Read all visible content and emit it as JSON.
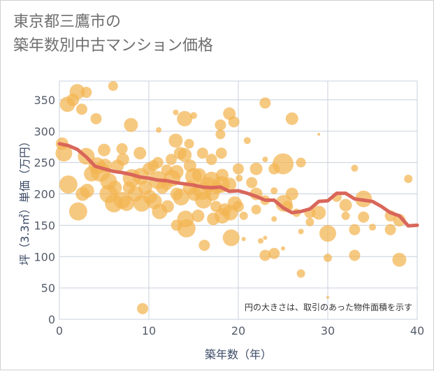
{
  "title": {
    "line1": "東京都三鷹市の",
    "line2": "築年数別中古マンション価格"
  },
  "chart_data": {
    "type": "scatter",
    "xlabel": "築年数（年）",
    "ylabel": "坪（3.3㎡）単価（万円）",
    "xlim": [
      0,
      40
    ],
    "ylim": [
      0,
      380
    ],
    "xticks": [
      0,
      10,
      20,
      30,
      40
    ],
    "yticks": [
      0,
      50,
      100,
      150,
      200,
      250,
      300,
      350
    ],
    "grid": true,
    "annotation": "円の大きさは、取引のあった物件面積を示す",
    "colors": {
      "bubble": "#f2b450",
      "trend": "#d9665a",
      "grid": "#c8d1dc"
    },
    "scatter": [
      {
        "x": 0.3,
        "y": 280,
        "s": 9
      },
      {
        "x": 0.5,
        "y": 265,
        "s": 12
      },
      {
        "x": 0.9,
        "y": 343,
        "s": 11
      },
      {
        "x": 1.0,
        "y": 215,
        "s": 13
      },
      {
        "x": 1.5,
        "y": 350,
        "s": 9
      },
      {
        "x": 2.0,
        "y": 363,
        "s": 11
      },
      {
        "x": 2.5,
        "y": 335,
        "s": 8
      },
      {
        "x": 3.0,
        "y": 362,
        "s": 8
      },
      {
        "x": 2.1,
        "y": 172,
        "s": 13
      },
      {
        "x": 2.6,
        "y": 200,
        "s": 10
      },
      {
        "x": 3.0,
        "y": 260,
        "s": 12
      },
      {
        "x": 3.1,
        "y": 205,
        "s": 10
      },
      {
        "x": 3.6,
        "y": 232,
        "s": 11
      },
      {
        "x": 4.1,
        "y": 320,
        "s": 8
      },
      {
        "x": 4.2,
        "y": 245,
        "s": 12
      },
      {
        "x": 4.6,
        "y": 235,
        "s": 14
      },
      {
        "x": 5.0,
        "y": 270,
        "s": 9
      },
      {
        "x": 5.1,
        "y": 245,
        "s": 10
      },
      {
        "x": 5.5,
        "y": 220,
        "s": 12
      },
      {
        "x": 5.5,
        "y": 200,
        "s": 13
      },
      {
        "x": 6.0,
        "y": 372,
        "s": 7
      },
      {
        "x": 6.1,
        "y": 185,
        "s": 13
      },
      {
        "x": 6.2,
        "y": 210,
        "s": 10
      },
      {
        "x": 6.5,
        "y": 245,
        "s": 9
      },
      {
        "x": 7.0,
        "y": 272,
        "s": 8
      },
      {
        "x": 7.1,
        "y": 255,
        "s": 9
      },
      {
        "x": 7.0,
        "y": 190,
        "s": 12
      },
      {
        "x": 7.5,
        "y": 185,
        "s": 11
      },
      {
        "x": 7.8,
        "y": 210,
        "s": 9
      },
      {
        "x": 8.0,
        "y": 310,
        "s": 10
      },
      {
        "x": 8.1,
        "y": 225,
        "s": 13
      },
      {
        "x": 8.5,
        "y": 200,
        "s": 11
      },
      {
        "x": 9.0,
        "y": 265,
        "s": 9
      },
      {
        "x": 9.1,
        "y": 228,
        "s": 12
      },
      {
        "x": 9.2,
        "y": 185,
        "s": 12
      },
      {
        "x": 9.3,
        "y": 17,
        "s": 8
      },
      {
        "x": 9.6,
        "y": 210,
        "s": 10
      },
      {
        "x": 10.0,
        "y": 240,
        "s": 9
      },
      {
        "x": 10.1,
        "y": 195,
        "s": 10
      },
      {
        "x": 10.5,
        "y": 245,
        "s": 8
      },
      {
        "x": 10.6,
        "y": 188,
        "s": 11
      },
      {
        "x": 11.0,
        "y": 222,
        "s": 13
      },
      {
        "x": 11.0,
        "y": 250,
        "s": 8
      },
      {
        "x": 11.1,
        "y": 302,
        "s": 4
      },
      {
        "x": 11.2,
        "y": 172,
        "s": 11
      },
      {
        "x": 11.5,
        "y": 210,
        "s": 9
      },
      {
        "x": 12.0,
        "y": 215,
        "s": 8
      },
      {
        "x": 12.0,
        "y": 238,
        "s": 8
      },
      {
        "x": 12.1,
        "y": 180,
        "s": 9
      },
      {
        "x": 12.5,
        "y": 255,
        "s": 8
      },
      {
        "x": 12.6,
        "y": 225,
        "s": 12
      },
      {
        "x": 13.0,
        "y": 285,
        "s": 10
      },
      {
        "x": 13.0,
        "y": 330,
        "s": 4
      },
      {
        "x": 13.1,
        "y": 235,
        "s": 10
      },
      {
        "x": 13.1,
        "y": 200,
        "s": 9
      },
      {
        "x": 13.1,
        "y": 150,
        "s": 8
      },
      {
        "x": 13.5,
        "y": 265,
        "s": 9
      },
      {
        "x": 13.6,
        "y": 195,
        "s": 12
      },
      {
        "x": 14.0,
        "y": 320,
        "s": 11
      },
      {
        "x": 14.0,
        "y": 262,
        "s": 10
      },
      {
        "x": 14.1,
        "y": 160,
        "s": 12
      },
      {
        "x": 14.2,
        "y": 145,
        "s": 13
      },
      {
        "x": 14.5,
        "y": 280,
        "s": 7
      },
      {
        "x": 14.6,
        "y": 245,
        "s": 9
      },
      {
        "x": 14.6,
        "y": 210,
        "s": 10
      },
      {
        "x": 15.0,
        "y": 325,
        "s": 5
      },
      {
        "x": 15.0,
        "y": 228,
        "s": 12
      },
      {
        "x": 15.1,
        "y": 200,
        "s": 10
      },
      {
        "x": 15.5,
        "y": 165,
        "s": 9
      },
      {
        "x": 15.6,
        "y": 230,
        "s": 10
      },
      {
        "x": 16.0,
        "y": 265,
        "s": 8
      },
      {
        "x": 16.0,
        "y": 205,
        "s": 13
      },
      {
        "x": 16.1,
        "y": 190,
        "s": 12
      },
      {
        "x": 16.2,
        "y": 118,
        "s": 8
      },
      {
        "x": 16.6,
        "y": 215,
        "s": 11
      },
      {
        "x": 17.0,
        "y": 255,
        "s": 8
      },
      {
        "x": 17.0,
        "y": 222,
        "s": 12
      },
      {
        "x": 17.1,
        "y": 200,
        "s": 10
      },
      {
        "x": 17.2,
        "y": 160,
        "s": 9
      },
      {
        "x": 17.5,
        "y": 180,
        "s": 8
      },
      {
        "x": 17.6,
        "y": 210,
        "s": 9
      },
      {
        "x": 18.0,
        "y": 310,
        "s": 8
      },
      {
        "x": 18.0,
        "y": 295,
        "s": 7
      },
      {
        "x": 18.1,
        "y": 265,
        "s": 8
      },
      {
        "x": 18.2,
        "y": 230,
        "s": 9
      },
      {
        "x": 18.1,
        "y": 215,
        "s": 12
      },
      {
        "x": 18.2,
        "y": 165,
        "s": 11
      },
      {
        "x": 18.5,
        "y": 175,
        "s": 9
      },
      {
        "x": 19.0,
        "y": 328,
        "s": 9
      },
      {
        "x": 19.0,
        "y": 215,
        "s": 10
      },
      {
        "x": 19.1,
        "y": 170,
        "s": 11
      },
      {
        "x": 19.2,
        "y": 130,
        "s": 12
      },
      {
        "x": 19.5,
        "y": 315,
        "s": 8
      },
      {
        "x": 19.6,
        "y": 185,
        "s": 10
      },
      {
        "x": 20.0,
        "y": 240,
        "s": 8
      },
      {
        "x": 20.0,
        "y": 180,
        "s": 8
      },
      {
        "x": 20.1,
        "y": 225,
        "s": 5
      },
      {
        "x": 20.6,
        "y": 165,
        "s": 6
      },
      {
        "x": 20.6,
        "y": 128,
        "s": 3
      },
      {
        "x": 21.0,
        "y": 285,
        "s": 5
      },
      {
        "x": 21.5,
        "y": 218,
        "s": 8
      },
      {
        "x": 22.0,
        "y": 240,
        "s": 9
      },
      {
        "x": 22.0,
        "y": 200,
        "s": 9
      },
      {
        "x": 22.0,
        "y": 175,
        "s": 7
      },
      {
        "x": 22.5,
        "y": 125,
        "s": 4
      },
      {
        "x": 23.0,
        "y": 345,
        "s": 8
      },
      {
        "x": 23.0,
        "y": 255,
        "s": 4
      },
      {
        "x": 23.0,
        "y": 190,
        "s": 7
      },
      {
        "x": 23.0,
        "y": 130,
        "s": 3
      },
      {
        "x": 23.0,
        "y": 102,
        "s": 8
      },
      {
        "x": 24.0,
        "y": 240,
        "s": 8
      },
      {
        "x": 24.0,
        "y": 205,
        "s": 5
      },
      {
        "x": 24.0,
        "y": 160,
        "s": 4
      },
      {
        "x": 24.0,
        "y": 105,
        "s": 8
      },
      {
        "x": 25.0,
        "y": 248,
        "s": 15
      },
      {
        "x": 25.1,
        "y": 185,
        "s": 12
      },
      {
        "x": 25.0,
        "y": 113,
        "s": 3
      },
      {
        "x": 25.5,
        "y": 180,
        "s": 8
      },
      {
        "x": 26.0,
        "y": 320,
        "s": 9
      },
      {
        "x": 26.0,
        "y": 200,
        "s": 9
      },
      {
        "x": 26.5,
        "y": 170,
        "s": 6
      },
      {
        "x": 27.0,
        "y": 250,
        "s": 7
      },
      {
        "x": 27.0,
        "y": 140,
        "s": 4
      },
      {
        "x": 27.0,
        "y": 73,
        "s": 6
      },
      {
        "x": 28.0,
        "y": 170,
        "s": 8
      },
      {
        "x": 28.0,
        "y": 155,
        "s": 6
      },
      {
        "x": 29.0,
        "y": 295,
        "s": 2
      },
      {
        "x": 29.0,
        "y": 170,
        "s": 10
      },
      {
        "x": 30.0,
        "y": 137,
        "s": 12
      },
      {
        "x": 30.0,
        "y": 98,
        "s": 6
      },
      {
        "x": 30.0,
        "y": 35,
        "s": 2
      },
      {
        "x": 31.0,
        "y": 195,
        "s": 7
      },
      {
        "x": 32.0,
        "y": 165,
        "s": 6
      },
      {
        "x": 32.0,
        "y": 182,
        "s": 9
      },
      {
        "x": 33.0,
        "y": 241,
        "s": 5
      },
      {
        "x": 33.0,
        "y": 143,
        "s": 8
      },
      {
        "x": 33.0,
        "y": 102,
        "s": 8
      },
      {
        "x": 34.0,
        "y": 192,
        "s": 12
      },
      {
        "x": 34.0,
        "y": 163,
        "s": 8
      },
      {
        "x": 35.0,
        "y": 147,
        "s": 5
      },
      {
        "x": 37.0,
        "y": 165,
        "s": 8
      },
      {
        "x": 37.0,
        "y": 143,
        "s": 8
      },
      {
        "x": 38.0,
        "y": 158,
        "s": 9
      },
      {
        "x": 38.0,
        "y": 95,
        "s": 10
      },
      {
        "x": 39.0,
        "y": 224,
        "s": 6
      }
    ],
    "trend": {
      "x": [
        0,
        1,
        2,
        3,
        4,
        5,
        6,
        7,
        8,
        9,
        10,
        11,
        12,
        13,
        14,
        15,
        16,
        17,
        18,
        19,
        20,
        21,
        22,
        23,
        24,
        25,
        26,
        27,
        28,
        29,
        30,
        31,
        32,
        33,
        34,
        35,
        36,
        37,
        38,
        39,
        40
      ],
      "y": [
        280,
        277,
        271,
        259,
        244,
        240,
        236,
        234,
        231,
        227,
        225,
        222,
        221,
        218,
        216,
        214,
        211,
        210,
        211,
        204,
        205,
        201,
        196,
        190,
        190,
        178,
        170,
        172,
        176,
        188,
        189,
        201,
        201,
        192,
        190,
        188,
        180,
        170,
        165,
        149,
        150
      ]
    }
  }
}
